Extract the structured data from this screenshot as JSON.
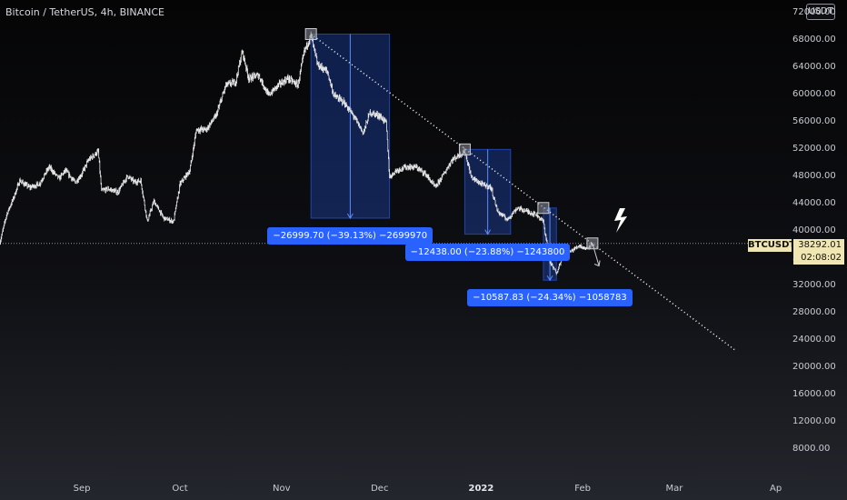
{
  "header": {
    "title": "Bitcoin / TetherUS, 4h, BINANCE",
    "currency_button": "USDT"
  },
  "price_tag": {
    "symbol": "BTCUSDT",
    "price": "38292.01",
    "countdown": "02:08:02"
  },
  "measurements": [
    {
      "text": "−26999.70 (−39.13%) −2699970"
    },
    {
      "text": "−12438.00 (−23.88%) −1243800"
    },
    {
      "text": "−10587.83 (−24.34%) −1058783"
    }
  ],
  "colors": {
    "candles": "#e8e8e8",
    "measure_fill": "#2962ff",
    "trendline": "#ffffff",
    "price_tag_bg": "#f0e6b4",
    "lightning": "#ffffff"
  },
  "icons": [
    "lightning-icon",
    "down-arrow-icon"
  ],
  "chart_data": {
    "type": "line",
    "title": "Bitcoin / TetherUS, 4h, BINANCE",
    "xlabel": "",
    "ylabel": "",
    "x_ticks": [
      "Sep",
      "Oct",
      "Nov",
      "Dec",
      "2022",
      "Feb",
      "Mar",
      "Ap"
    ],
    "y_ticks": [
      "72000.00",
      "68000.00",
      "64000.00",
      "60000.00",
      "56000.00",
      "52000.00",
      "48000.00",
      "44000.00",
      "40000.00",
      "36000.00",
      "32000.00",
      "28000.00",
      "24000.00",
      "20000.00",
      "16000.00",
      "12000.00",
      "8000.00"
    ],
    "ylim": [
      4000,
      74000
    ],
    "x_range": [
      "2021-08-07",
      "2022-04-05"
    ],
    "series": [
      {
        "values": [
          [
            "2021-08-07",
            38500
          ],
          [
            "2021-08-09",
            42500
          ],
          [
            "2021-08-11",
            44800
          ],
          [
            "2021-08-13",
            47500
          ],
          [
            "2021-08-16",
            46500
          ],
          [
            "2021-08-19",
            47000
          ],
          [
            "2021-08-22",
            49500
          ],
          [
            "2021-08-25",
            47800
          ],
          [
            "2021-08-27",
            49000
          ],
          [
            "2021-08-30",
            47200
          ],
          [
            "2021-09-01",
            48500
          ],
          [
            "2021-09-03",
            50500
          ],
          [
            "2021-09-06",
            51800
          ],
          [
            "2021-09-07",
            46000
          ],
          [
            "2021-09-09",
            46300
          ],
          [
            "2021-09-12",
            45800
          ],
          [
            "2021-09-15",
            48200
          ],
          [
            "2021-09-17",
            47300
          ],
          [
            "2021-09-19",
            47500
          ],
          [
            "2021-09-21",
            41500
          ],
          [
            "2021-09-23",
            44500
          ],
          [
            "2021-09-26",
            42000
          ],
          [
            "2021-09-29",
            41500
          ],
          [
            "2021-10-01",
            47000
          ],
          [
            "2021-10-04",
            49000
          ],
          [
            "2021-10-06",
            55000
          ],
          [
            "2021-10-09",
            55000
          ],
          [
            "2021-10-12",
            57000
          ],
          [
            "2021-10-15",
            61500
          ],
          [
            "2021-10-18",
            62000
          ],
          [
            "2021-10-20",
            66500
          ],
          [
            "2021-10-22",
            62500
          ],
          [
            "2021-10-25",
            63000
          ],
          [
            "2021-10-28",
            60000
          ],
          [
            "2021-10-31",
            61500
          ],
          [
            "2021-11-03",
            62500
          ],
          [
            "2021-11-06",
            61500
          ],
          [
            "2021-11-08",
            66500
          ],
          [
            "2021-11-10",
            68800
          ],
          [
            "2021-11-12",
            64500
          ],
          [
            "2021-11-15",
            63500
          ],
          [
            "2021-11-17",
            60000
          ],
          [
            "2021-11-20",
            59000
          ],
          [
            "2021-11-23",
            57000
          ],
          [
            "2021-11-26",
            54500
          ],
          [
            "2021-11-28",
            57500
          ],
          [
            "2021-12-01",
            57000
          ],
          [
            "2021-12-03",
            56000
          ],
          [
            "2021-12-04",
            48000
          ],
          [
            "2021-12-06",
            49000
          ],
          [
            "2021-12-09",
            49500
          ],
          [
            "2021-12-12",
            49500
          ],
          [
            "2021-12-15",
            48500
          ],
          [
            "2021-12-18",
            46500
          ],
          [
            "2021-12-21",
            48800
          ],
          [
            "2021-12-23",
            50500
          ],
          [
            "2021-12-27",
            51800
          ],
          [
            "2021-12-29",
            48000
          ],
          [
            "2022-01-01",
            47000
          ],
          [
            "2022-01-04",
            46500
          ],
          [
            "2022-01-06",
            43000
          ],
          [
            "2022-01-09",
            41800
          ],
          [
            "2022-01-12",
            43500
          ],
          [
            "2022-01-15",
            43000
          ],
          [
            "2022-01-18",
            42500
          ],
          [
            "2022-01-20",
            41500
          ],
          [
            "2022-01-22",
            35500
          ],
          [
            "2022-01-24",
            34000
          ],
          [
            "2022-01-26",
            36500
          ],
          [
            "2022-01-28",
            37000
          ],
          [
            "2022-01-31",
            38000
          ],
          [
            "2022-02-02",
            37500
          ],
          [
            "2022-02-04",
            38300
          ]
        ]
      }
    ],
    "measurements": [
      {
        "from_date": "2021-11-10",
        "to_date": "2021-12-04",
        "from_price": 69000,
        "to_price": 42000,
        "change": -26999.7,
        "percent": -39.13
      },
      {
        "from_date": "2021-12-27",
        "to_date": "2022-01-10",
        "from_price": 52088,
        "to_price": 39650,
        "change": -12438.0,
        "percent": -23.88
      },
      {
        "from_date": "2022-01-20",
        "to_date": "2022-01-24",
        "from_price": 43500,
        "to_price": 32900,
        "change": -10587.83,
        "percent": -24.34
      }
    ],
    "trendline": [
      [
        "2021-11-10",
        69000
      ],
      [
        "2022-03-20",
        22500
      ]
    ],
    "projection": [
      [
        "2022-02-04",
        38300
      ],
      [
        "2022-02-06",
        35000
      ]
    ],
    "current_price": 38292.01,
    "grid": false,
    "legend": "none"
  }
}
